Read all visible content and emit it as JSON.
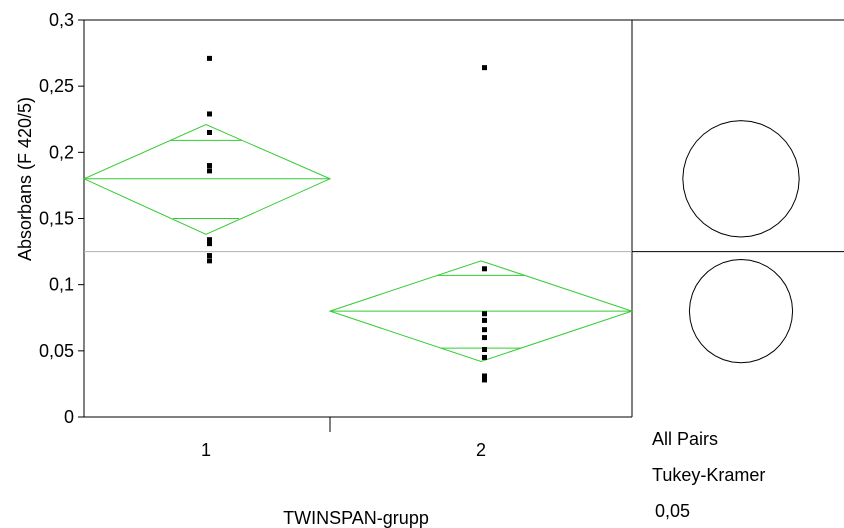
{
  "chart_data": {
    "type": "scatter",
    "title": "",
    "xlabel": "TWINSPAN-grupp",
    "ylabel": "Absorbans (F 420/5)",
    "ylim": [
      0,
      0.3
    ],
    "yticks": [
      "0",
      "0,05",
      "0,1",
      "0,15",
      "0,2",
      "0,25",
      "0,3"
    ],
    "ytick_values": [
      0,
      0.05,
      0.1,
      0.15,
      0.2,
      0.25,
      0.3
    ],
    "categories": [
      "1",
      "2"
    ],
    "grand_mean": 0.125,
    "groups": [
      {
        "category": "1",
        "points": [
          0.271,
          0.229,
          0.215,
          0.19,
          0.186,
          0.134,
          0.131,
          0.122,
          0.118
        ],
        "mean": 0.18,
        "ci_upper": 0.221,
        "ci_lower": 0.138,
        "overlap_upper": 0.209,
        "overlap_lower": 0.15
      },
      {
        "category": "2",
        "points": [
          0.264,
          0.112,
          0.078,
          0.073,
          0.066,
          0.06,
          0.051,
          0.045,
          0.031,
          0.028
        ],
        "mean": 0.08,
        "ci_upper": 0.118,
        "ci_lower": 0.042,
        "overlap_upper": 0.107,
        "overlap_lower": 0.052
      }
    ],
    "comparison_circles": [
      {
        "center": 0.18,
        "radius": 0.044
      },
      {
        "center": 0.08,
        "radius": 0.039
      }
    ],
    "comparison_panel": {
      "line1": "All Pairs",
      "line2": "Tukey-Kramer",
      "line3": "0,05"
    },
    "colors": {
      "diamond": "#33cc33",
      "points": "#000000",
      "grand_mean_line": "#b0b0b0",
      "axes": "#000000"
    }
  }
}
